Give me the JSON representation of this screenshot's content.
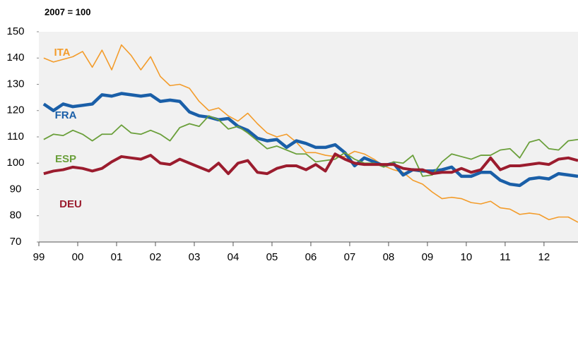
{
  "chart_data": {
    "type": "line",
    "title": "2007 = 100",
    "x": [
      1999.125,
      1999.375,
      1999.625,
      1999.875,
      2000.125,
      2000.375,
      2000.625,
      2000.875,
      2001.125,
      2001.375,
      2001.625,
      2001.875,
      2002.125,
      2002.375,
      2002.625,
      2002.875,
      2003.125,
      2003.375,
      2003.625,
      2003.875,
      2004.125,
      2004.375,
      2004.625,
      2004.875,
      2005.125,
      2005.375,
      2005.625,
      2005.875,
      2006.125,
      2006.375,
      2006.625,
      2006.875,
      2007.125,
      2007.375,
      2007.625,
      2007.875,
      2008.125,
      2008.375,
      2008.625,
      2008.875,
      2009.125,
      2009.375,
      2009.625,
      2009.875,
      2010.125,
      2010.375,
      2010.625,
      2010.875,
      2011.125,
      2011.375,
      2011.625,
      2011.875,
      2012.125,
      2012.375,
      2012.625,
      2012.875
    ],
    "series": [
      {
        "name": "ITA",
        "color": "#f39c2b",
        "values": [
          140,
          138.5,
          139.5,
          140.5,
          142.5,
          136.5,
          143,
          135.5,
          145,
          141,
          135.5,
          140.5,
          133,
          129.5,
          130,
          128.5,
          123.5,
          120,
          121,
          118,
          116,
          119,
          115,
          111.5,
          110,
          111,
          108,
          104,
          104,
          103,
          102.5,
          102.5,
          104.5,
          103.5,
          101.5,
          99,
          97.5,
          96.5,
          93.5,
          92,
          89,
          86.5,
          87,
          86.5,
          85,
          84.5,
          85.5,
          83,
          82.5,
          80.5,
          81,
          80.5,
          78.5,
          79.5,
          79.5,
          77.5
        ]
      },
      {
        "name": "FRA",
        "color": "#1a5fa8",
        "values": [
          122.5,
          120,
          122.5,
          121.5,
          122,
          122.5,
          126,
          125.5,
          126.5,
          126,
          125.5,
          126,
          123.5,
          124,
          123.5,
          119.5,
          118,
          117.5,
          116.5,
          117,
          114,
          112.5,
          109.5,
          108.5,
          109,
          106,
          108.5,
          107.5,
          106,
          106,
          107,
          104,
          99,
          102,
          100.5,
          99,
          100,
          95.5,
          97.5,
          97,
          97,
          97.5,
          98.5,
          95,
          95,
          96.5,
          96.5,
          93.5,
          92,
          91.5,
          94,
          94.5,
          94,
          96,
          95.5,
          95
        ]
      },
      {
        "name": "ESP",
        "color": "#6a9f3a",
        "values": [
          109,
          111,
          110.5,
          112.5,
          111,
          108.5,
          111,
          111,
          114.5,
          111.5,
          111,
          112.5,
          111,
          108.5,
          113.5,
          115,
          114,
          118,
          116.5,
          113,
          114,
          111.5,
          108.5,
          105.5,
          106.5,
          105,
          103.5,
          103.5,
          100.5,
          101,
          101.5,
          104,
          101.5,
          100,
          100,
          98.5,
          100.5,
          100,
          103,
          95,
          95.5,
          100.5,
          103.5,
          102.5,
          101.5,
          103,
          103,
          105,
          105.5,
          102,
          108,
          109,
          105.5,
          105,
          108.5,
          109
        ]
      },
      {
        "name": "DEU",
        "color": "#9b1c2e",
        "values": [
          96,
          97,
          97.5,
          98.5,
          98,
          97,
          98,
          100.5,
          102.5,
          102,
          101.5,
          103,
          100,
          99.5,
          101.5,
          100,
          98.5,
          97,
          100,
          96,
          100,
          101,
          96.5,
          96,
          98,
          99,
          99,
          97.5,
          99.5,
          97,
          103.5,
          101.5,
          100,
          99.5,
          99.5,
          99.5,
          99.5,
          98,
          97.5,
          97.5,
          96,
          96.5,
          96.5,
          98,
          96.5,
          97.5,
          102,
          97.5,
          99,
          99,
          99.5,
          100,
          99.5,
          101.5,
          102,
          101
        ]
      }
    ],
    "xlim": [
      1999,
      2012.875
    ],
    "xticks": [
      {
        "value": 1999,
        "label": "99"
      },
      {
        "value": 2000,
        "label": "00"
      },
      {
        "value": 2001,
        "label": "01"
      },
      {
        "value": 2002,
        "label": "02"
      },
      {
        "value": 2003,
        "label": "03"
      },
      {
        "value": 2004,
        "label": "04"
      },
      {
        "value": 2005,
        "label": "05"
      },
      {
        "value": 2006,
        "label": "06"
      },
      {
        "value": 2007,
        "label": "07"
      },
      {
        "value": 2008,
        "label": "08"
      },
      {
        "value": 2009,
        "label": "09"
      },
      {
        "value": 2010,
        "label": "10"
      },
      {
        "value": 2011,
        "label": "11"
      },
      {
        "value": 2012,
        "label": "12"
      }
    ],
    "ylim": [
      70,
      150
    ],
    "yticks": [
      70,
      80,
      90,
      100,
      110,
      120,
      130,
      140,
      150
    ]
  }
}
